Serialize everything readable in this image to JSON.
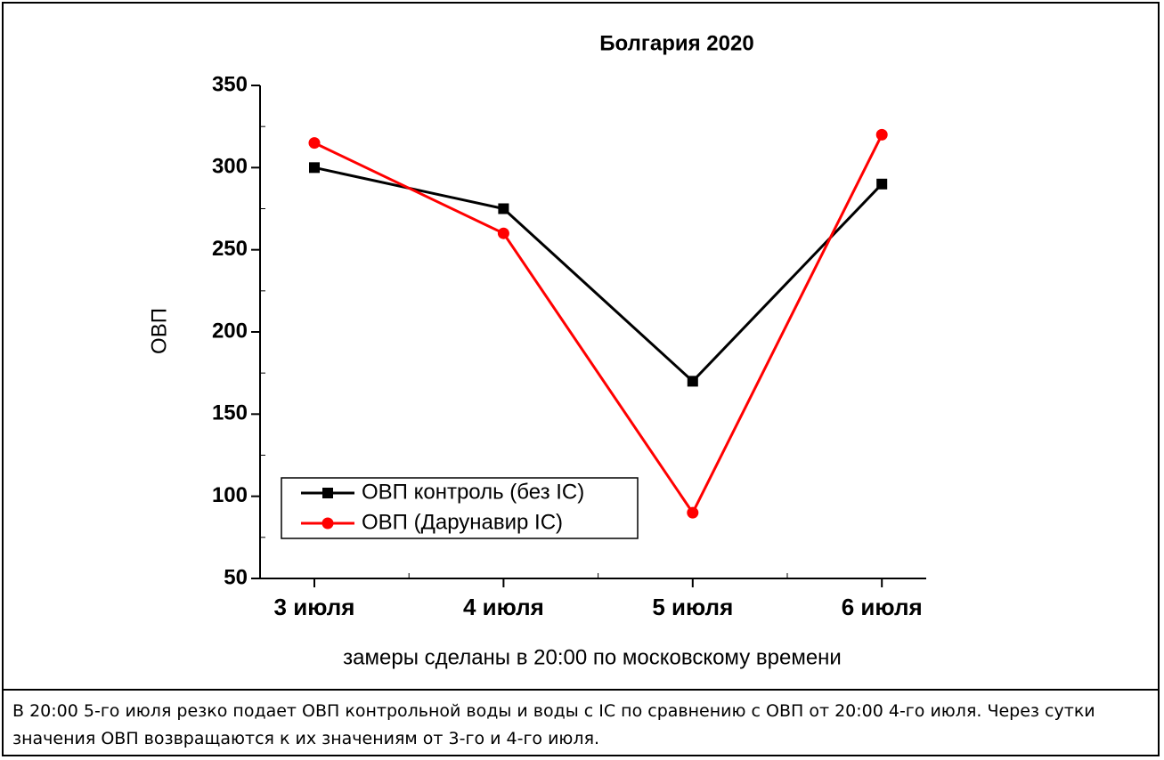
{
  "chart_data": {
    "type": "line",
    "title": "Болгария   2020",
    "categories": [
      "3 июля",
      "4 июля",
      "5 июля",
      "6 июля"
    ],
    "series": [
      {
        "name": "ОВП контроль (без IC)",
        "color": "#000000",
        "marker": "square",
        "values": [
          300,
          275,
          170,
          290
        ]
      },
      {
        "name": "ОВП (Дарунавир IC)",
        "color": "#ff0000",
        "marker": "circle",
        "values": [
          315,
          260,
          90,
          320
        ]
      }
    ],
    "y_label": "ОВП",
    "x_label": "замеры сделаны в 20:00 по московскому времени",
    "ylim": [
      50,
      350
    ],
    "yticks": [
      50,
      100,
      150,
      200,
      250,
      300,
      350
    ],
    "legend": "lower left",
    "grid": false
  },
  "caption": "В 20:00  5-го июля  резко подает ОВП контрольной воды и воды с IC  по сравнению с ОВП от 20:00 4-го июля. Через сутки значения ОВП возвращаются к их значениям от 3-го и 4-го июля."
}
